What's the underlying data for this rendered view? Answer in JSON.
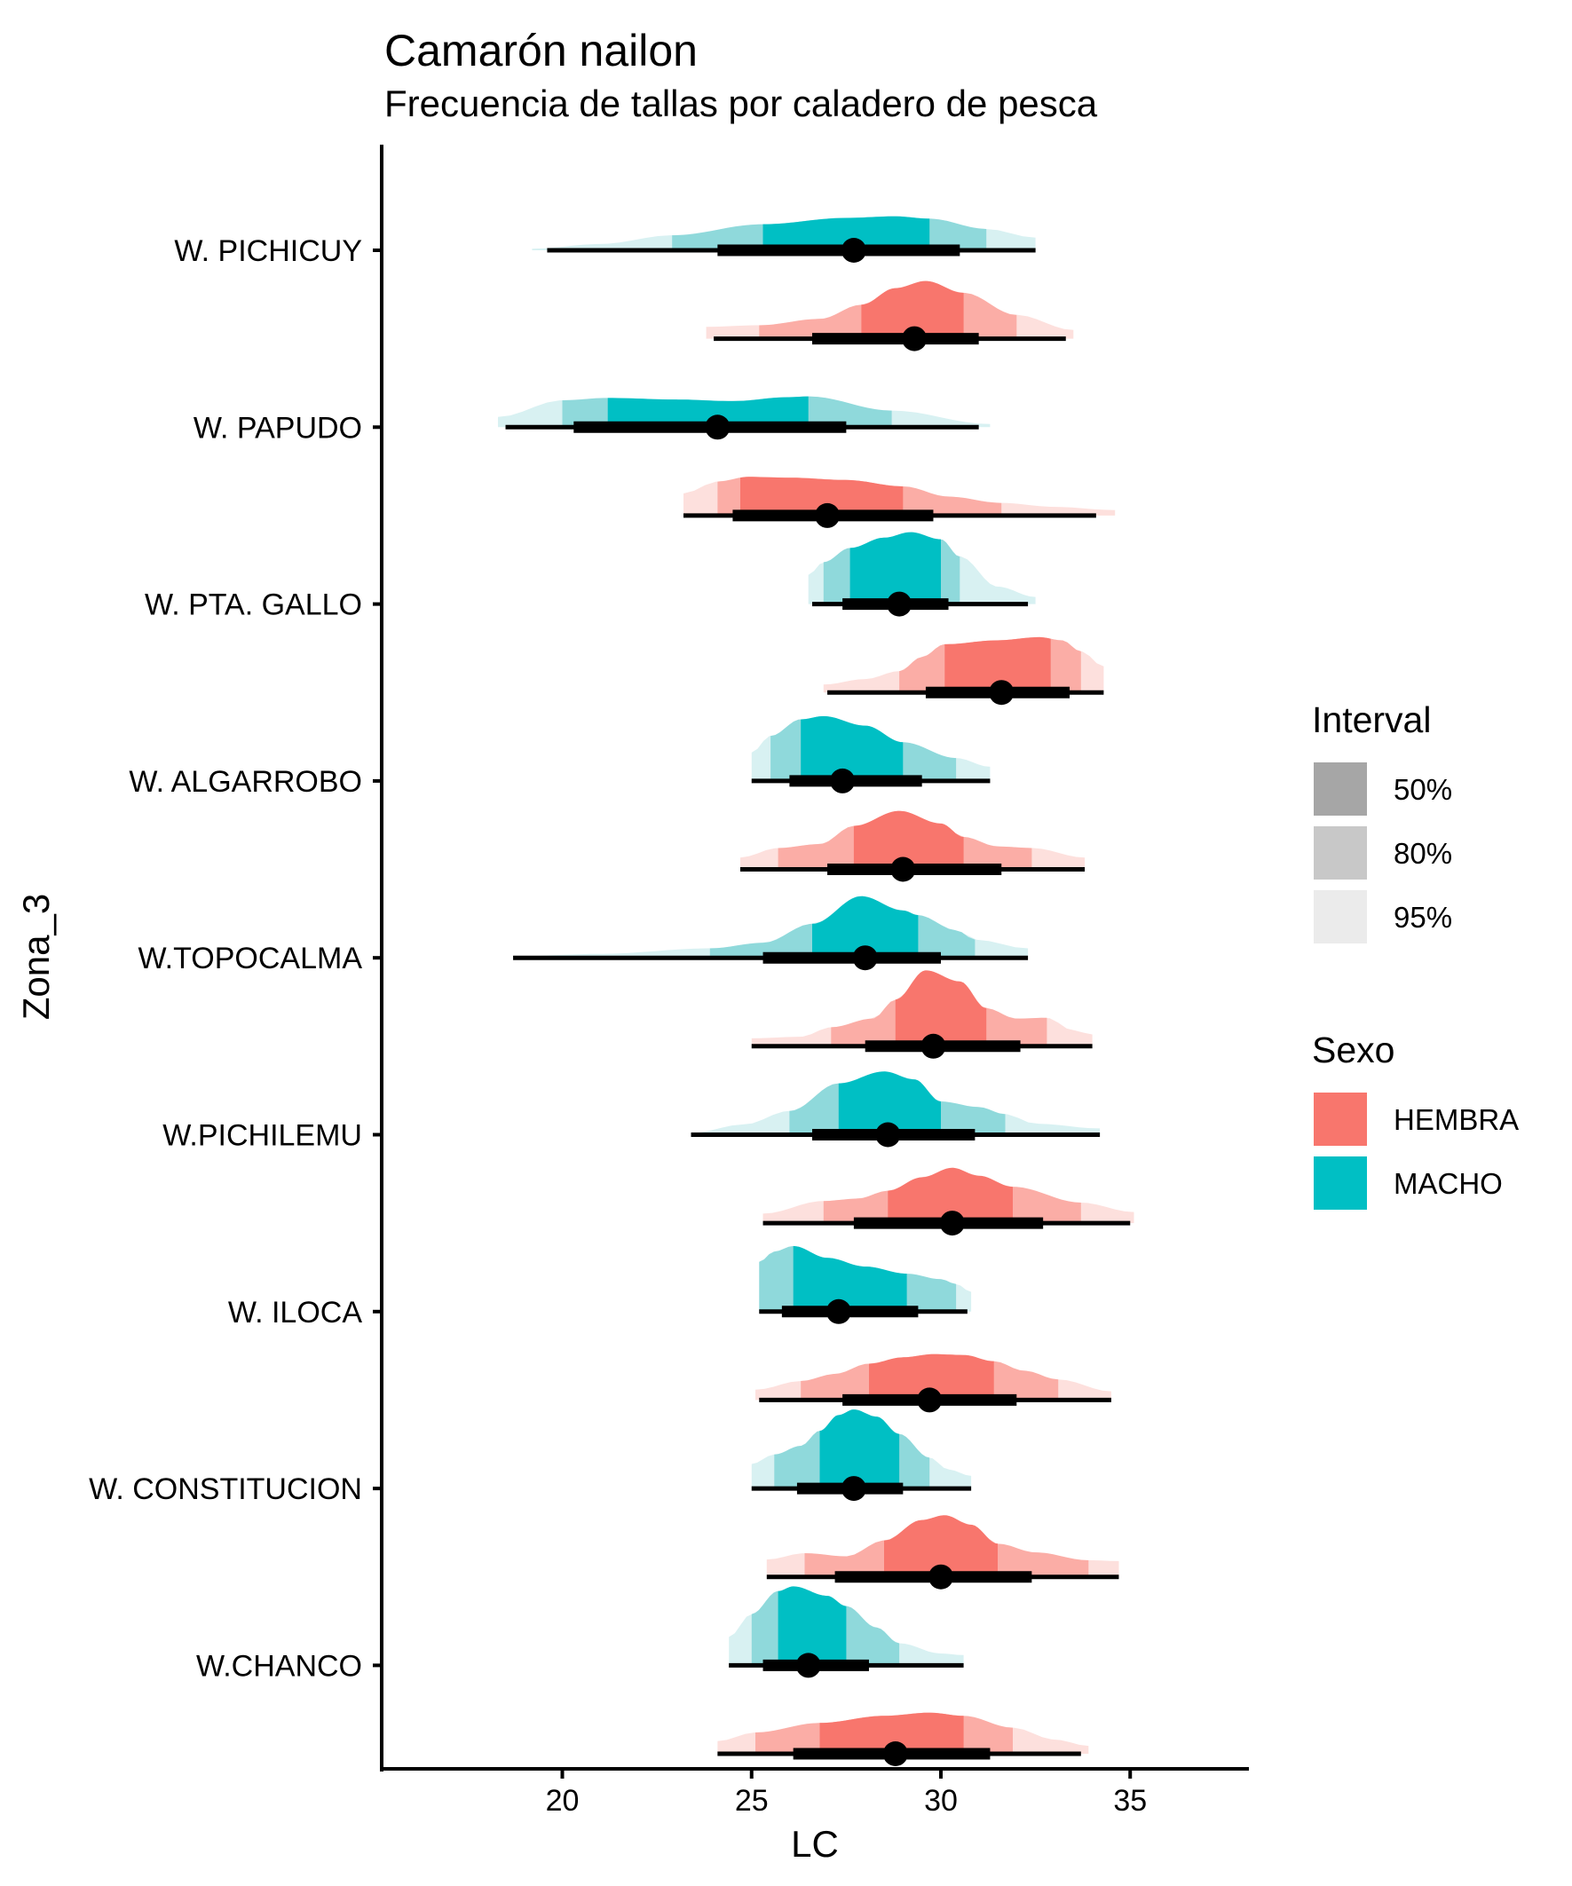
{
  "chart_data": {
    "type": "slab-interval (half-eye density)",
    "title": "Camarón nailon",
    "subtitle": "Frecuencia de tallas por caladero de pesca",
    "xlabel": "LC",
    "ylabel": "Zona_3",
    "xlim": [
      15.2,
      38.1
    ],
    "x_ticks": [
      20,
      25,
      30,
      35
    ],
    "x_tick_labels": [
      "20",
      "25",
      "30",
      "35"
    ],
    "grid": false,
    "categories": [
      "W. PICHICUY",
      "W. PAPUDO",
      "W. PTA. GALLO",
      "W. ALGARROBO",
      "W.TOPOCALMA",
      "W.PICHILEMU",
      "W. ILOCA",
      "W. CONSTITUCION",
      "W.CHANCO"
    ],
    "legend_position": "right",
    "legends": [
      {
        "title": "Interval",
        "items": [
          {
            "label": "50%",
            "color": "#a6a6a6"
          },
          {
            "label": "80%",
            "color": "#c8c8c8"
          },
          {
            "label": "95%",
            "color": "#ebebeb"
          }
        ]
      },
      {
        "title": "Sexo",
        "items": [
          {
            "label": "HEMBRA",
            "color": "#f8766d"
          },
          {
            "label": "MACHO",
            "color": "#00bfc4"
          }
        ]
      }
    ],
    "colors": {
      "MACHO": {
        "50": "#00bfc4",
        "80": "#8fd9db",
        "95": "#d8f1f2"
      },
      "HEMBRA": {
        "50": "#f8766d",
        "80": "#fbada6",
        "95": "#fde0dd"
      }
    },
    "series": [
      {
        "zona": "W. PICHICUY",
        "sexo": "MACHO",
        "point": 27.7,
        "thick": [
          24.1,
          30.5
        ],
        "thin": [
          19.6,
          32.5
        ],
        "q95": [
          19.2,
          32.5
        ],
        "q80": [
          22.9,
          31.2
        ],
        "q50": [
          25.3,
          29.7
        ],
        "density": [
          [
            19.2,
            0.02
          ],
          [
            21,
            0.08
          ],
          [
            22.9,
            0.19
          ],
          [
            25.3,
            0.33
          ],
          [
            27.5,
            0.41
          ],
          [
            28.8,
            0.43
          ],
          [
            29.7,
            0.4
          ],
          [
            31.2,
            0.27
          ],
          [
            32.5,
            0.16
          ]
        ]
      },
      {
        "zona": "W. PICHICUY",
        "sexo": "HEMBRA",
        "point": 29.3,
        "thick": [
          26.6,
          31.0
        ],
        "thin": [
          24.0,
          33.3
        ],
        "q95": [
          23.8,
          33.5
        ],
        "q80": [
          25.2,
          32.0
        ],
        "q50": [
          27.9,
          30.6
        ],
        "density": [
          [
            23.8,
            0.15
          ],
          [
            25.2,
            0.17
          ],
          [
            26.8,
            0.25
          ],
          [
            27.9,
            0.43
          ],
          [
            28.8,
            0.64
          ],
          [
            29.6,
            0.73
          ],
          [
            30.6,
            0.58
          ],
          [
            32.0,
            0.3
          ],
          [
            33.5,
            0.11
          ]
        ]
      },
      {
        "zona": "W. PAPUDO",
        "sexo": "MACHO",
        "point": 24.1,
        "thick": [
          20.3,
          27.5
        ],
        "thin": [
          18.5,
          31.0
        ],
        "q95": [
          18.3,
          31.3
        ],
        "q80": [
          20.0,
          28.7
        ],
        "q50": [
          21.2,
          26.5
        ],
        "density": [
          [
            18.3,
            0.13
          ],
          [
            20.0,
            0.34
          ],
          [
            21.2,
            0.37
          ],
          [
            23,
            0.35
          ],
          [
            24.5,
            0.33
          ],
          [
            26,
            0.38
          ],
          [
            26.5,
            0.39
          ],
          [
            28.7,
            0.21
          ],
          [
            31.3,
            0.04
          ]
        ]
      },
      {
        "zona": "W. PAPUDO",
        "sexo": "HEMBRA",
        "point": 27.0,
        "thick": [
          24.5,
          29.8
        ],
        "thin": [
          23.2,
          34.1
        ],
        "q95": [
          23.2,
          34.6
        ],
        "q80": [
          24.1,
          31.6
        ],
        "q50": [
          24.7,
          29.0
        ],
        "density": [
          [
            23.2,
            0.28
          ],
          [
            24.1,
            0.43
          ],
          [
            24.9,
            0.49
          ],
          [
            26,
            0.48
          ],
          [
            27.5,
            0.45
          ],
          [
            29.0,
            0.37
          ],
          [
            30.2,
            0.24
          ],
          [
            31.6,
            0.16
          ],
          [
            33,
            0.11
          ],
          [
            34.6,
            0.07
          ]
        ]
      },
      {
        "zona": "W. PTA. GALLO",
        "sexo": "MACHO",
        "point": 28.9,
        "thick": [
          27.4,
          30.2
        ],
        "thin": [
          26.6,
          32.3
        ],
        "q95": [
          26.5,
          32.5
        ],
        "q80": [
          26.9,
          30.5
        ],
        "q50": [
          27.6,
          30.0
        ],
        "density": [
          [
            26.5,
            0.37
          ],
          [
            26.9,
            0.53
          ],
          [
            27.6,
            0.71
          ],
          [
            28.5,
            0.84
          ],
          [
            29.2,
            0.91
          ],
          [
            30.0,
            0.82
          ],
          [
            30.5,
            0.6
          ],
          [
            31.5,
            0.22
          ],
          [
            32.5,
            0.09
          ]
        ]
      },
      {
        "zona": "W. PTA. GALLO",
        "sexo": "HEMBRA",
        "point": 31.6,
        "thick": [
          29.6,
          33.4
        ],
        "thin": [
          27.0,
          34.3
        ],
        "q95": [
          26.9,
          34.3
        ],
        "q80": [
          28.9,
          33.7
        ],
        "q50": [
          30.1,
          32.9
        ],
        "density": [
          [
            26.9,
            0.1
          ],
          [
            28.0,
            0.17
          ],
          [
            28.9,
            0.27
          ],
          [
            29.5,
            0.45
          ],
          [
            30.1,
            0.61
          ],
          [
            31.5,
            0.66
          ],
          [
            32.6,
            0.7
          ],
          [
            33.2,
            0.66
          ],
          [
            33.7,
            0.52
          ],
          [
            34.3,
            0.33
          ]
        ]
      },
      {
        "zona": "W. ALGARROBO",
        "sexo": "MACHO",
        "point": 27.4,
        "thick": [
          26.0,
          29.5
        ],
        "thin": [
          25.0,
          31.3
        ],
        "q95": [
          25.0,
          31.3
        ],
        "q80": [
          25.5,
          30.4
        ],
        "q50": [
          26.3,
          29.0
        ],
        "density": [
          [
            25.0,
            0.36
          ],
          [
            25.5,
            0.57
          ],
          [
            26.3,
            0.78
          ],
          [
            26.9,
            0.82
          ],
          [
            28.0,
            0.7
          ],
          [
            29.0,
            0.49
          ],
          [
            30.4,
            0.29
          ],
          [
            31.3,
            0.18
          ]
        ]
      },
      {
        "zona": "W. ALGARROBO",
        "sexo": "HEMBRA",
        "point": 29.0,
        "thick": [
          27.0,
          31.6
        ],
        "thin": [
          24.7,
          33.8
        ],
        "q95": [
          24.7,
          33.8
        ],
        "q80": [
          25.7,
          32.4
        ],
        "q50": [
          27.7,
          30.6
        ],
        "density": [
          [
            24.7,
            0.15
          ],
          [
            25.7,
            0.27
          ],
          [
            26.8,
            0.32
          ],
          [
            27.7,
            0.55
          ],
          [
            28.9,
            0.74
          ],
          [
            30.0,
            0.58
          ],
          [
            30.6,
            0.41
          ],
          [
            31.5,
            0.29
          ],
          [
            32.4,
            0.27
          ],
          [
            33.8,
            0.15
          ]
        ]
      },
      {
        "zona": "W.TOPOCALMA",
        "sexo": "MACHO",
        "point": 28.0,
        "thick": [
          25.3,
          30.0
        ],
        "thin": [
          18.7,
          32.3
        ],
        "q95": [
          18.7,
          32.3
        ],
        "q80": [
          23.9,
          30.9
        ],
        "q50": [
          26.6,
          29.4
        ],
        "density": [
          [
            18.7,
            0.02
          ],
          [
            21,
            0.05
          ],
          [
            23.9,
            0.12
          ],
          [
            25.3,
            0.19
          ],
          [
            26.6,
            0.43
          ],
          [
            27.9,
            0.78
          ],
          [
            29.0,
            0.6
          ],
          [
            29.4,
            0.54
          ],
          [
            30.4,
            0.35
          ],
          [
            30.9,
            0.23
          ],
          [
            32.3,
            0.12
          ]
        ]
      },
      {
        "zona": "W.TOPOCALMA",
        "sexo": "HEMBRA",
        "point": 29.8,
        "thick": [
          28.0,
          32.1
        ],
        "thin": [
          25.0,
          34.0
        ],
        "q95": [
          25.0,
          34.0
        ],
        "q80": [
          27.1,
          32.8
        ],
        "q50": [
          28.8,
          31.2
        ],
        "density": [
          [
            25.0,
            0.1
          ],
          [
            26.3,
            0.12
          ],
          [
            27.1,
            0.24
          ],
          [
            28.2,
            0.35
          ],
          [
            28.8,
            0.59
          ],
          [
            29.6,
            0.96
          ],
          [
            30.5,
            0.82
          ],
          [
            31.2,
            0.48
          ],
          [
            32.0,
            0.35
          ],
          [
            32.8,
            0.36
          ],
          [
            33.5,
            0.2
          ],
          [
            34.0,
            0.15
          ]
        ]
      },
      {
        "zona": "W.PICHILEMU",
        "sexo": "MACHO",
        "point": 28.6,
        "thick": [
          26.6,
          30.9
        ],
        "thin": [
          23.4,
          34.2
        ],
        "q95": [
          23.4,
          34.2
        ],
        "q80": [
          26.0,
          31.7
        ],
        "q50": [
          27.3,
          30.0
        ],
        "density": [
          [
            23.4,
            0.02
          ],
          [
            24.8,
            0.13
          ],
          [
            26.0,
            0.3
          ],
          [
            27.3,
            0.65
          ],
          [
            28.5,
            0.8
          ],
          [
            29.3,
            0.7
          ],
          [
            30.0,
            0.42
          ],
          [
            31.0,
            0.35
          ],
          [
            31.7,
            0.26
          ],
          [
            32.5,
            0.14
          ],
          [
            34.2,
            0.08
          ]
        ]
      },
      {
        "zona": "W.PICHILEMU",
        "sexo": "HEMBRA",
        "point": 30.3,
        "thick": [
          27.7,
          32.7
        ],
        "thin": [
          25.3,
          35.0
        ],
        "q95": [
          25.3,
          35.1
        ],
        "q80": [
          26.9,
          33.7
        ],
        "q50": [
          28.6,
          31.9
        ],
        "density": [
          [
            25.3,
            0.12
          ],
          [
            26.9,
            0.28
          ],
          [
            27.8,
            0.31
          ],
          [
            28.6,
            0.41
          ],
          [
            29.5,
            0.58
          ],
          [
            30.3,
            0.7
          ],
          [
            31.0,
            0.6
          ],
          [
            31.9,
            0.46
          ],
          [
            33.7,
            0.26
          ],
          [
            35.1,
            0.14
          ]
        ]
      },
      {
        "zona": "W. ILOCA",
        "sexo": "MACHO",
        "point": 27.3,
        "thick": [
          25.8,
          29.4
        ],
        "thin": [
          25.2,
          30.7
        ],
        "q95": [
          25.2,
          30.8
        ],
        "q80": [
          25.2,
          30.4
        ],
        "q50": [
          26.1,
          29.1
        ],
        "density": [
          [
            25.2,
            0.63
          ],
          [
            25.6,
            0.76
          ],
          [
            26.1,
            0.83
          ],
          [
            27.0,
            0.68
          ],
          [
            28.0,
            0.57
          ],
          [
            29.1,
            0.48
          ],
          [
            30.0,
            0.41
          ],
          [
            30.4,
            0.35
          ],
          [
            30.8,
            0.25
          ]
        ]
      },
      {
        "zona": "W. ILOCA",
        "sexo": "HEMBRA",
        "point": 29.7,
        "thick": [
          27.4,
          32.0
        ],
        "thin": [
          25.2,
          34.5
        ],
        "q95": [
          25.1,
          34.5
        ],
        "q80": [
          26.3,
          33.1
        ],
        "q50": [
          28.1,
          31.4
        ],
        "density": [
          [
            25.1,
            0.13
          ],
          [
            26.3,
            0.24
          ],
          [
            27.2,
            0.33
          ],
          [
            28.1,
            0.46
          ],
          [
            29.0,
            0.54
          ],
          [
            29.8,
            0.58
          ],
          [
            30.6,
            0.57
          ],
          [
            31.4,
            0.49
          ],
          [
            32.2,
            0.37
          ],
          [
            33.1,
            0.26
          ],
          [
            34.5,
            0.11
          ]
        ]
      },
      {
        "zona": "W. CONSTITUCION",
        "sexo": "MACHO",
        "point": 27.7,
        "thick": [
          26.2,
          29.0
        ],
        "thin": [
          25.0,
          30.8
        ],
        "q95": [
          25.0,
          30.8
        ],
        "q80": [
          25.6,
          29.7
        ],
        "q50": [
          26.8,
          28.9
        ],
        "density": [
          [
            25.0,
            0.31
          ],
          [
            25.6,
            0.43
          ],
          [
            26.3,
            0.54
          ],
          [
            26.8,
            0.73
          ],
          [
            27.3,
            0.93
          ],
          [
            27.7,
            1.0
          ],
          [
            28.3,
            0.91
          ],
          [
            28.9,
            0.69
          ],
          [
            29.7,
            0.39
          ],
          [
            30.2,
            0.24
          ],
          [
            30.8,
            0.16
          ]
        ]
      },
      {
        "zona": "W. CONSTITUCION",
        "sexo": "HEMBRA",
        "point": 30.0,
        "thick": [
          27.2,
          32.4
        ],
        "thin": [
          25.4,
          34.7
        ],
        "q95": [
          25.4,
          34.7
        ],
        "q80": [
          26.4,
          33.9
        ],
        "q50": [
          28.5,
          31.5
        ],
        "density": [
          [
            25.4,
            0.22
          ],
          [
            26.4,
            0.3
          ],
          [
            27.5,
            0.26
          ],
          [
            28.5,
            0.46
          ],
          [
            29.5,
            0.72
          ],
          [
            30.1,
            0.78
          ],
          [
            30.8,
            0.66
          ],
          [
            31.5,
            0.42
          ],
          [
            32.5,
            0.31
          ],
          [
            33.9,
            0.21
          ],
          [
            34.7,
            0.2
          ]
        ]
      },
      {
        "zona": "W.CHANCO",
        "sexo": "MACHO",
        "point": 26.5,
        "thick": [
          25.3,
          28.1
        ],
        "thin": [
          24.4,
          30.6
        ],
        "q95": [
          24.4,
          30.6
        ],
        "q80": [
          25.0,
          28.9
        ],
        "q50": [
          25.7,
          27.5
        ],
        "density": [
          [
            24.4,
            0.36
          ],
          [
            25.0,
            0.65
          ],
          [
            25.7,
            0.94
          ],
          [
            26.1,
            1.0
          ],
          [
            27.0,
            0.88
          ],
          [
            27.5,
            0.75
          ],
          [
            28.3,
            0.48
          ],
          [
            28.9,
            0.28
          ],
          [
            30.0,
            0.15
          ],
          [
            30.6,
            0.13
          ]
        ]
      },
      {
        "zona": "W.CHANCO",
        "sexo": "HEMBRA",
        "point": 28.8,
        "thick": [
          26.1,
          31.3
        ],
        "thin": [
          24.1,
          33.7
        ],
        "q95": [
          24.1,
          33.9
        ],
        "q80": [
          25.1,
          31.9
        ],
        "q50": [
          26.8,
          30.6
        ],
        "density": [
          [
            24.1,
            0.16
          ],
          [
            25.1,
            0.27
          ],
          [
            26.8,
            0.39
          ],
          [
            28.5,
            0.48
          ],
          [
            29.7,
            0.52
          ],
          [
            30.6,
            0.48
          ],
          [
            31.9,
            0.33
          ],
          [
            33.0,
            0.18
          ],
          [
            33.9,
            0.1
          ]
        ]
      }
    ]
  }
}
